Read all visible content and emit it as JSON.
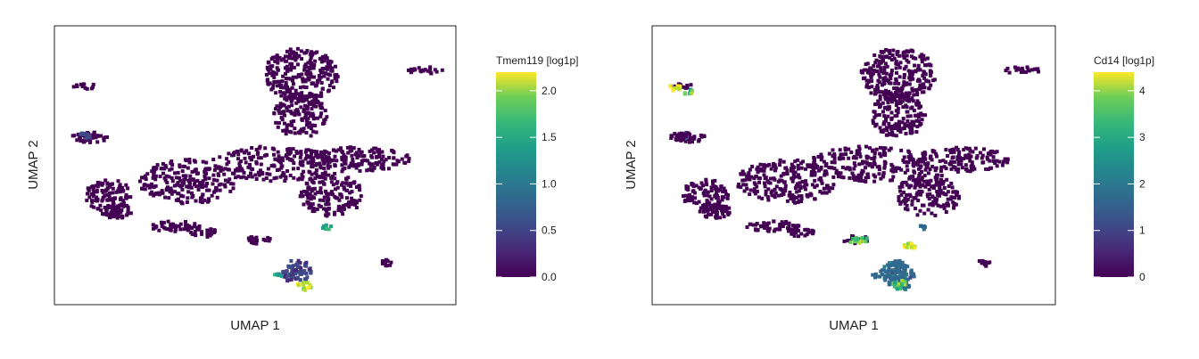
{
  "chart_data": [
    {
      "type": "scatter",
      "subtype": "hexbin-umap-feature",
      "title": "",
      "xlabel": "UMAP 1",
      "ylabel": "UMAP 2",
      "colorbar": {
        "title": "Tmem119 [log1p]",
        "range": [
          0.0,
          2.2
        ],
        "ticks": [
          "0.0",
          "0.5",
          "1.0",
          "1.5",
          "2.0"
        ],
        "tick_values": [
          0.0,
          0.5,
          1.0,
          1.5,
          2.0
        ]
      },
      "colormap": "viridis",
      "clusters": [
        {
          "name": "",
          "value": 0.05
        },
        {
          "name": "",
          "value": 0.4
        },
        {
          "name": "",
          "value": 1.2
        },
        {
          "name": "",
          "value": 2.0
        }
      ]
    },
    {
      "type": "scatter",
      "subtype": "hexbin-umap-feature",
      "title": "",
      "xlabel": "UMAP 1",
      "ylabel": "UMAP 2",
      "colorbar": {
        "title": "Cd14 [log1p]",
        "range": [
          0,
          4.4
        ],
        "ticks": [
          "0",
          "1",
          "2",
          "3",
          "4"
        ],
        "tick_values": [
          0,
          1,
          2,
          3,
          4
        ]
      },
      "colormap": "viridis",
      "clusters": [
        {
          "name": "",
          "value": 0.1
        },
        {
          "name": "",
          "value": 1.5
        },
        {
          "name": "",
          "value": 3.2
        },
        {
          "name": "",
          "value": 4.3
        }
      ]
    }
  ],
  "colors": {
    "background": "#ffffff",
    "frame": "#222222",
    "viridis_low": "#440154",
    "viridis_mid": "#21918c",
    "viridis_high": "#fde725"
  }
}
